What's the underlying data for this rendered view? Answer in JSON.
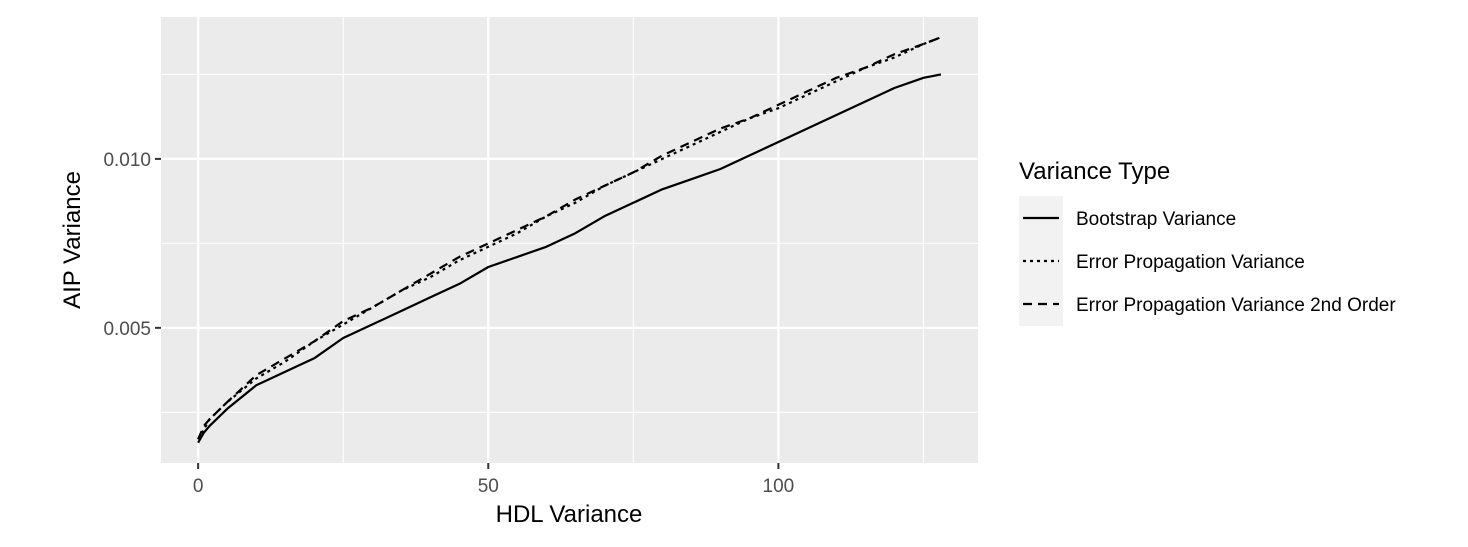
{
  "chart_data": {
    "type": "line",
    "xlabel": "HDL Variance",
    "ylabel": "AIP Variance",
    "xlim": [
      -6.4,
      134.4
    ],
    "ylim": [
      0.001,
      0.0142
    ],
    "x_ticks": [
      0,
      50,
      100
    ],
    "x_tick_labels": [
      "0",
      "50",
      "100"
    ],
    "y_ticks": [
      0.005,
      0.01
    ],
    "y_tick_labels": [
      "0.005",
      "0.010"
    ],
    "grid": true,
    "background": "#ebebeb",
    "legend": {
      "title": "Variance Type",
      "position": "right"
    },
    "series": [
      {
        "name": "Bootstrap Variance",
        "linetype": "solid",
        "color": "#000000",
        "points": [
          [
            0,
            0.0016
          ],
          [
            1,
            0.0019
          ],
          [
            2,
            0.0021
          ],
          [
            5,
            0.0026
          ],
          [
            10,
            0.0033
          ],
          [
            15,
            0.0037
          ],
          [
            20,
            0.0041
          ],
          [
            25,
            0.0047
          ],
          [
            30,
            0.0051
          ],
          [
            35,
            0.0055
          ],
          [
            40,
            0.0059
          ],
          [
            45,
            0.0063
          ],
          [
            50,
            0.0068
          ],
          [
            55,
            0.0071
          ],
          [
            60,
            0.0074
          ],
          [
            65,
            0.0078
          ],
          [
            70,
            0.0083
          ],
          [
            75,
            0.0087
          ],
          [
            80,
            0.0091
          ],
          [
            85,
            0.0094
          ],
          [
            90,
            0.0097
          ],
          [
            95,
            0.0101
          ],
          [
            100,
            0.0105
          ],
          [
            105,
            0.0109
          ],
          [
            110,
            0.0113
          ],
          [
            115,
            0.0117
          ],
          [
            120,
            0.0121
          ],
          [
            125,
            0.0124
          ],
          [
            128,
            0.0125
          ]
        ]
      },
      {
        "name": "Error Propagation Variance",
        "linetype": "dotted",
        "color": "#000000",
        "points": [
          [
            0,
            0.0017
          ],
          [
            1,
            0.002
          ],
          [
            2,
            0.0023
          ],
          [
            5,
            0.0028
          ],
          [
            10,
            0.0035
          ],
          [
            15,
            0.004
          ],
          [
            20,
            0.0046
          ],
          [
            25,
            0.0051
          ],
          [
            30,
            0.0056
          ],
          [
            35,
            0.0061
          ],
          [
            40,
            0.0065
          ],
          [
            45,
            0.007
          ],
          [
            50,
            0.0074
          ],
          [
            55,
            0.0078
          ],
          [
            60,
            0.0083
          ],
          [
            65,
            0.0087
          ],
          [
            70,
            0.0092
          ],
          [
            75,
            0.0096
          ],
          [
            80,
            0.01
          ],
          [
            85,
            0.0104
          ],
          [
            90,
            0.0108
          ],
          [
            95,
            0.0112
          ],
          [
            100,
            0.0115
          ],
          [
            105,
            0.0119
          ],
          [
            110,
            0.0123
          ],
          [
            115,
            0.0127
          ],
          [
            120,
            0.013
          ],
          [
            125,
            0.0134
          ],
          [
            128,
            0.0136
          ]
        ]
      },
      {
        "name": "Error Propagation Variance 2nd Order",
        "linetype": "dashed",
        "color": "#000000",
        "points": [
          [
            0,
            0.0017
          ],
          [
            1,
            0.0021
          ],
          [
            2,
            0.0023
          ],
          [
            5,
            0.0028
          ],
          [
            10,
            0.0036
          ],
          [
            15,
            0.0041
          ],
          [
            20,
            0.0046
          ],
          [
            25,
            0.0052
          ],
          [
            30,
            0.0056
          ],
          [
            35,
            0.0061
          ],
          [
            40,
            0.0066
          ],
          [
            45,
            0.0071
          ],
          [
            50,
            0.0075
          ],
          [
            55,
            0.0079
          ],
          [
            60,
            0.0083
          ],
          [
            65,
            0.0088
          ],
          [
            70,
            0.0092
          ],
          [
            75,
            0.0096
          ],
          [
            80,
            0.0101
          ],
          [
            85,
            0.0105
          ],
          [
            90,
            0.0109
          ],
          [
            95,
            0.0112
          ],
          [
            100,
            0.0116
          ],
          [
            105,
            0.012
          ],
          [
            110,
            0.0124
          ],
          [
            115,
            0.0127
          ],
          [
            120,
            0.0131
          ],
          [
            125,
            0.0134
          ],
          [
            128,
            0.0136
          ]
        ]
      }
    ]
  }
}
